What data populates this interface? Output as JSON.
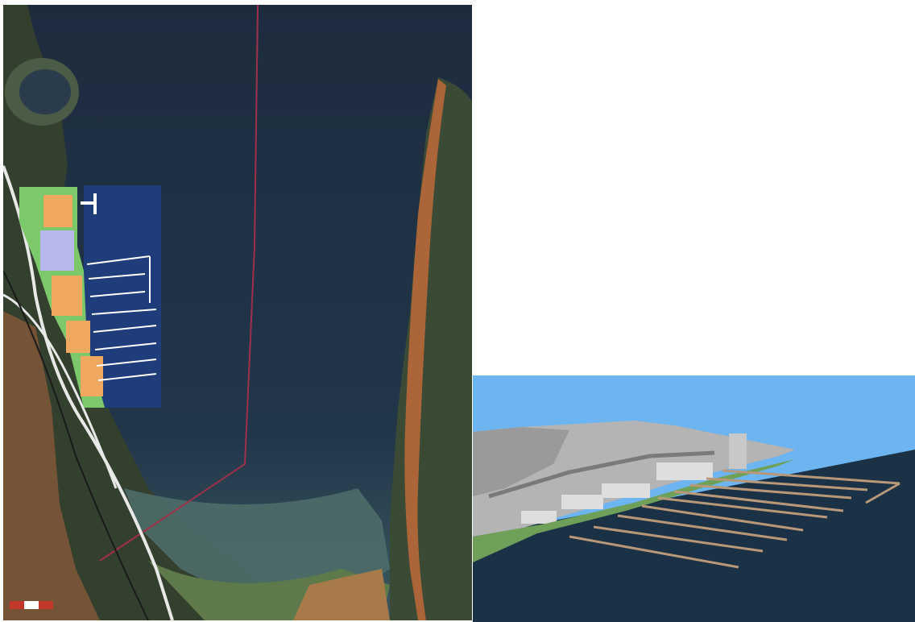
{
  "aerial_map": {
    "title": "",
    "scale_bar": {
      "colors": [
        "#c0392b",
        "#ffffff"
      ]
    },
    "colors": {
      "lake": "#213244",
      "lake_deep": "#1b2a3b",
      "shallows": "#4f6f6a",
      "forest": "#34402e",
      "marsh": "#5e7a4a",
      "soil": "#8a5a3a",
      "shore_orange": "#c06a3a",
      "road": "#e8e8e8",
      "plan_green": "#7cc86a",
      "plan_orange": "#f0a860",
      "plan_lavender": "#b8b8ec",
      "marina_basin": "#1f3d7a",
      "boundary_line": "#a0304a"
    }
  },
  "rendering_3d": {
    "colors": {
      "sky": "#6cb5f0",
      "water": "#1b3146",
      "terrain": "#b4b4b4",
      "buildings": "#dedede",
      "dock": "#b89878",
      "shore_green": "#6fa05a"
    }
  }
}
